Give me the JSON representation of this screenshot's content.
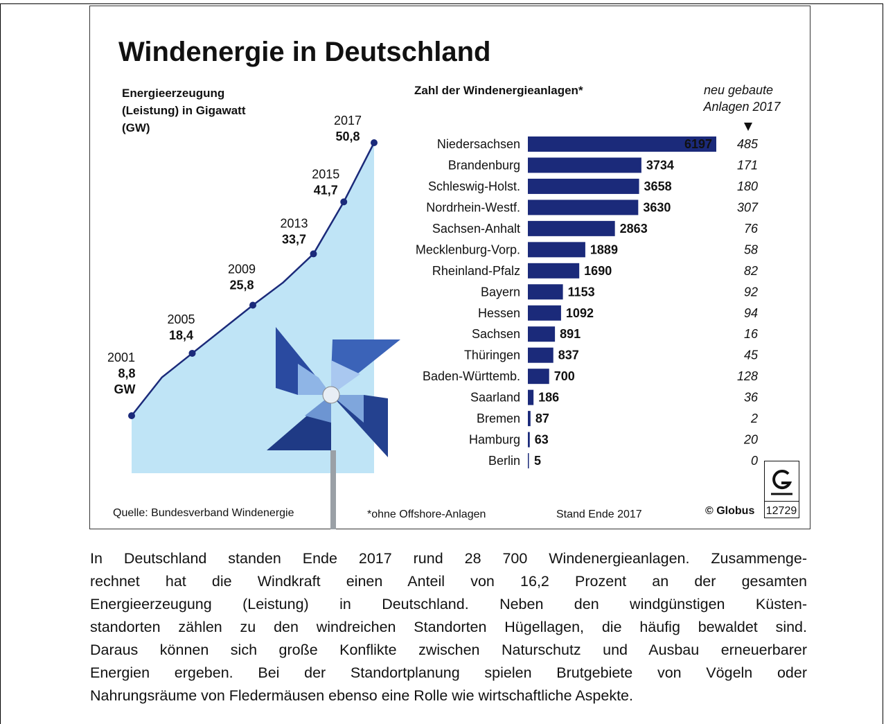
{
  "header": {
    "title": "Windenergie in Deutschland"
  },
  "chart_data": [
    {
      "type": "line",
      "title_lines": [
        "Energieerzeugung",
        "(Leistung) in Gigawatt",
        "(GW)"
      ],
      "x": [
        2001,
        2003,
        2005,
        2009,
        2011,
        2013,
        2015,
        2017
      ],
      "values": [
        8.8,
        14.7,
        18.4,
        25.8,
        29.3,
        33.7,
        41.7,
        50.8
      ],
      "value_labels": [
        "8,8",
        null,
        "18,4",
        "25,8",
        null,
        "33,7",
        "41,7",
        "50,8"
      ],
      "unit_label": "GW",
      "xlim": [
        2001,
        2017
      ],
      "ylim": [
        8.8,
        50.8
      ],
      "color": "#1b2a7a",
      "area_color": "#bfe4f6"
    },
    {
      "type": "bar",
      "orientation": "horizontal",
      "title": "Zahl der Windenergieanlagen*",
      "categories": [
        "Niedersachsen",
        "Brandenburg",
        "Schleswig-Holst.",
        "Nordrhein-Westf.",
        "Sachsen-Anhalt",
        "Mecklenburg-Vorp.",
        "Rheinland-Pfalz",
        "Bayern",
        "Hessen",
        "Sachsen",
        "Thüringen",
        "Baden-Württemb.",
        "Saarland",
        "Bremen",
        "Hamburg",
        "Berlin"
      ],
      "values": [
        6197,
        3734,
        3658,
        3630,
        2863,
        1889,
        1690,
        1153,
        1092,
        891,
        837,
        700,
        186,
        87,
        63,
        5
      ],
      "xlim": [
        0,
        6197
      ],
      "color": "#1b2a7a",
      "new_2017": {
        "title_lines": [
          "neu gebaute",
          "Anlagen 2017"
        ],
        "values": [
          485,
          171,
          180,
          307,
          76,
          58,
          82,
          92,
          94,
          16,
          45,
          128,
          36,
          2,
          20,
          0
        ]
      }
    }
  ],
  "footer": {
    "source": "Quelle: Bundesverband Windenergie",
    "note": "*ohne Offshore-Anlagen",
    "date": "Stand Ende 2017",
    "copyright": "© Globus",
    "code": "12729"
  },
  "text": {
    "lines": [
      "In Deutschland standen Ende 2017 rund 28 700 Windenergieanlagen. Zusammenge-",
      "rechnet hat die Windkraft einen Anteil von 16,2 Prozent an der gesamten",
      "Energieerzeugung (Leistung) in Deutschland. Neben den windgünstigen Küsten-",
      "standorten zählen zu den windreichen Standorten Hügellagen, die häufig bewaldet sind.",
      "Daraus können sich große Konflikte zwischen Naturschutz und Ausbau erneuerbarer",
      "Energien ergeben. Bei der Standortplanung spielen Brutgebiete von Vögeln oder",
      "Nahrungsräume von Fledermäusen ebenso eine Rolle wie wirtschaftliche Aspekte."
    ]
  }
}
